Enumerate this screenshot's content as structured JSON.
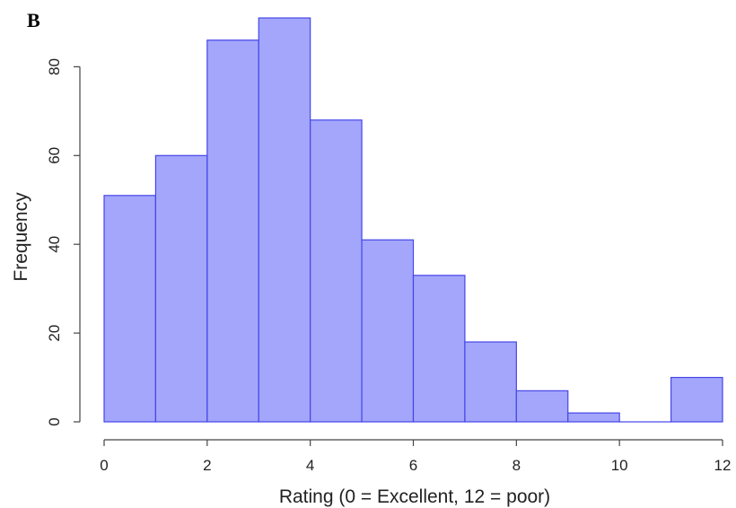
{
  "panel_label": "B",
  "chart_data": {
    "type": "bar",
    "subtype": "histogram",
    "bin_edges": [
      0,
      1,
      2,
      3,
      4,
      5,
      6,
      7,
      8,
      9,
      10,
      11,
      12
    ],
    "values": [
      51,
      60,
      86,
      91,
      68,
      41,
      33,
      18,
      7,
      2,
      0,
      10
    ],
    "xlabel": "Rating (0 = Excellent, 12 = poor)",
    "ylabel": "Frequency",
    "xlim": [
      0,
      12
    ],
    "ylim": [
      0,
      91
    ],
    "x_ticks": [
      0,
      2,
      4,
      6,
      8,
      10,
      12
    ],
    "y_ticks": [
      0,
      20,
      40,
      60,
      80
    ],
    "bar_color": "#a3a6fb",
    "bar_edge_color": "#4646e8",
    "grid": false
  }
}
